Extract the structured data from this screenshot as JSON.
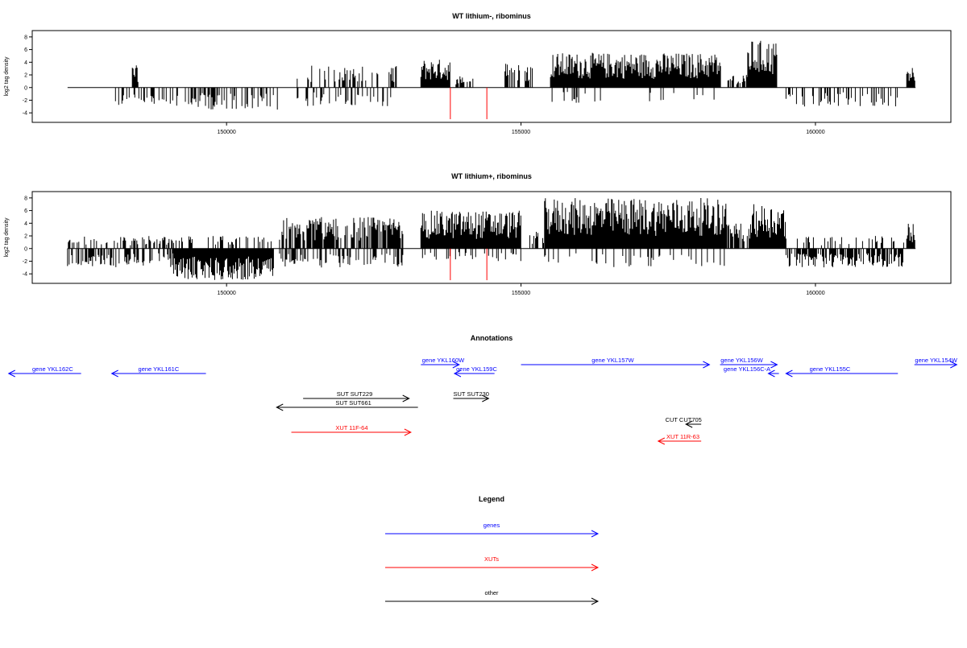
{
  "chart_data": [
    {
      "type": "bar",
      "title": "WT lithium-, ribominus",
      "ylabel": "log2 tag density",
      "xlabel": "",
      "xlim": [
        146700,
        162300
      ],
      "ylim": [
        -5.5,
        9
      ],
      "xticks": [
        150000,
        155000,
        160000
      ],
      "xtick_labels": [
        "150000",
        "155000",
        "160000"
      ],
      "yticks": [
        8,
        6,
        4,
        2,
        0,
        -2,
        -4
      ],
      "ytick_labels": [
        "8",
        "6",
        "4",
        "2",
        "0",
        "-2",
        "-4"
      ],
      "baseline": {
        "x_start": 147300,
        "x_end": 161700,
        "y": 0
      },
      "markers": [
        {
          "x": 153800,
          "y0": 0,
          "y1": -5,
          "color": "#ff0000"
        },
        {
          "x": 154420,
          "y0": 0,
          "y1": -5,
          "color": "#ff0000"
        }
      ],
      "segments": [
        {
          "x0": 147300,
          "x1": 148100,
          "density": 0,
          "amp": 0,
          "sign": 1
        },
        {
          "x0": 148100,
          "x1": 149200,
          "density": 0.35,
          "amp": 3,
          "sign": -1
        },
        {
          "x0": 148400,
          "x1": 148500,
          "density": 1,
          "amp": 3.5,
          "sign": 1
        },
        {
          "x0": 149300,
          "x1": 149850,
          "density": 0.6,
          "amp": 3.5,
          "sign": -1
        },
        {
          "x0": 149850,
          "x1": 150900,
          "density": 0.4,
          "amp": 3.5,
          "sign": -1
        },
        {
          "x0": 151200,
          "x1": 152900,
          "density": 0.35,
          "amp": 3.5,
          "sign": 1
        },
        {
          "x0": 151200,
          "x1": 152900,
          "density": 0.3,
          "amp": 3,
          "sign": -1
        },
        {
          "x0": 153300,
          "x1": 153800,
          "density": 1,
          "amp": 4.5,
          "sign": 1
        },
        {
          "x0": 153800,
          "x1": 154200,
          "density": 0.5,
          "amp": 2,
          "sign": 1
        },
        {
          "x0": 154700,
          "x1": 155200,
          "density": 0.5,
          "amp": 4,
          "sign": 1
        },
        {
          "x0": 155500,
          "x1": 158400,
          "density": 1,
          "amp": 5.5,
          "sign": 1
        },
        {
          "x0": 155500,
          "x1": 158400,
          "density": 0.08,
          "amp": 2.5,
          "sign": -1
        },
        {
          "x0": 158500,
          "x1": 158850,
          "density": 0.6,
          "amp": 2,
          "sign": 1
        },
        {
          "x0": 158850,
          "x1": 159350,
          "density": 1,
          "amp": 7.5,
          "sign": 1
        },
        {
          "x0": 159500,
          "x1": 161400,
          "density": 0.3,
          "amp": 3,
          "sign": -1
        },
        {
          "x0": 161550,
          "x1": 161700,
          "density": 1,
          "amp": 3.5,
          "sign": 1
        }
      ]
    },
    {
      "type": "bar",
      "title": "WT lithium+, ribominus",
      "ylabel": "log2 tag density",
      "xlabel": "",
      "xlim": [
        146700,
        162300
      ],
      "ylim": [
        -5.5,
        9
      ],
      "xticks": [
        150000,
        155000,
        160000
      ],
      "xtick_labels": [
        "150000",
        "155000",
        "160000"
      ],
      "yticks": [
        8,
        6,
        4,
        2,
        0,
        -2,
        -4
      ],
      "ytick_labels": [
        "8",
        "6",
        "4",
        "2",
        "0",
        "-2",
        "-4"
      ],
      "baseline": {
        "x_start": 147300,
        "x_end": 161700,
        "y": 0
      },
      "markers": [
        {
          "x": 153800,
          "y0": 0,
          "y1": -5,
          "color": "#ff0000"
        },
        {
          "x": 154420,
          "y0": 0,
          "y1": -5,
          "color": "#ff0000"
        }
      ],
      "segments": [
        {
          "x0": 147300,
          "x1": 149100,
          "density": 0.4,
          "amp": 2,
          "sign": 1
        },
        {
          "x0": 147300,
          "x1": 149100,
          "density": 0.5,
          "amp": 3,
          "sign": -1
        },
        {
          "x0": 149100,
          "x1": 150800,
          "density": 1,
          "amp": 5,
          "sign": -1
        },
        {
          "x0": 149100,
          "x1": 150800,
          "density": 0.3,
          "amp": 2,
          "sign": 1
        },
        {
          "x0": 150900,
          "x1": 153000,
          "density": 0.8,
          "amp": 5,
          "sign": 1
        },
        {
          "x0": 150900,
          "x1": 153000,
          "density": 0.4,
          "amp": 3,
          "sign": -1
        },
        {
          "x0": 153300,
          "x1": 155000,
          "density": 1,
          "amp": 6,
          "sign": 1
        },
        {
          "x0": 153300,
          "x1": 155000,
          "density": 0.2,
          "amp": 2,
          "sign": -1
        },
        {
          "x0": 155000,
          "x1": 155400,
          "density": 0.4,
          "amp": 3,
          "sign": 1
        },
        {
          "x0": 155400,
          "x1": 158500,
          "density": 1,
          "amp": 8,
          "sign": 1
        },
        {
          "x0": 155400,
          "x1": 158500,
          "density": 0.15,
          "amp": 3,
          "sign": -1
        },
        {
          "x0": 158500,
          "x1": 158900,
          "density": 0.7,
          "amp": 4,
          "sign": 1
        },
        {
          "x0": 158900,
          "x1": 159500,
          "density": 1,
          "amp": 7,
          "sign": 1
        },
        {
          "x0": 159500,
          "x1": 161500,
          "density": 0.7,
          "amp": 3,
          "sign": -1
        },
        {
          "x0": 159500,
          "x1": 161500,
          "density": 0.15,
          "amp": 2,
          "sign": 1
        },
        {
          "x0": 161550,
          "x1": 161700,
          "density": 1,
          "amp": 4,
          "sign": 1
        }
      ]
    }
  ],
  "annotations": {
    "title": "Annotations",
    "features": [
      {
        "label": "gene YKL162C",
        "x0": 147530,
        "x1": 146300,
        "lane": 1,
        "color": "#0000ff",
        "label_x": 146700
      },
      {
        "label": "gene YKL161C",
        "x0": 149650,
        "x1": 148050,
        "lane": 1,
        "color": "#0000ff",
        "label_x": 148500
      },
      {
        "label": "gene YKL160W",
        "x0": 153300,
        "x1": 153950,
        "lane": 0,
        "color": "#0000ff",
        "label_x": 153320
      },
      {
        "label": "gene YKL159C",
        "x0": 154550,
        "x1": 153870,
        "lane": 1,
        "color": "#0000ff",
        "label_x": 153900
      },
      {
        "label": "gene YKL157W",
        "x0": 155000,
        "x1": 158200,
        "lane": 0,
        "color": "#0000ff",
        "label_x": 156200
      },
      {
        "label": "gene YKL156W",
        "x0": 158380,
        "x1": 159350,
        "lane": 0,
        "color": "#0000ff",
        "label_x": 158390
      },
      {
        "label": "gene YKL156C-A",
        "x0": 159380,
        "x1": 159200,
        "lane": 1,
        "color": "#0000ff",
        "label_x": 158440
      },
      {
        "label": "gene YKL155C",
        "x0": 161400,
        "x1": 159500,
        "lane": 1,
        "color": "#0000ff",
        "label_x": 159900
      },
      {
        "label": "gene YKL154W",
        "x0": 161680,
        "x1": 162400,
        "lane": 0,
        "color": "#0000ff",
        "label_x": 161690
      },
      {
        "label": "SUT SUT229",
        "x0": 151300,
        "x1": 153100,
        "lane": 2,
        "color": "#000000",
        "label_x": 151870
      },
      {
        "label": "SUT SUT661",
        "x0": 153250,
        "x1": 150850,
        "lane": 3,
        "color": "#000000",
        "label_x": 151850
      },
      {
        "label": "SUT SUT230",
        "x0": 153850,
        "x1": 154450,
        "lane": 2,
        "color": "#000000",
        "label_x": 153850
      },
      {
        "label": "XUT 11F-64",
        "x0": 151100,
        "x1": 153130,
        "lane": 4,
        "color": "#ff0000",
        "label_x": 151850
      },
      {
        "label": "CUT CUT705",
        "x0": 158060,
        "x1": 157800,
        "lane": 5,
        "color": "#000000",
        "label_x": 157450
      },
      {
        "label": "XUT 11R-63",
        "x0": 158060,
        "x1": 157330,
        "lane": 6,
        "color": "#ff0000",
        "label_x": 157470
      }
    ]
  },
  "legend": {
    "title": "Legend",
    "items": [
      {
        "label": "genes",
        "color": "#0000ff"
      },
      {
        "label": "XUTs",
        "color": "#ff0000"
      },
      {
        "label": "other",
        "color": "#000000"
      }
    ]
  }
}
